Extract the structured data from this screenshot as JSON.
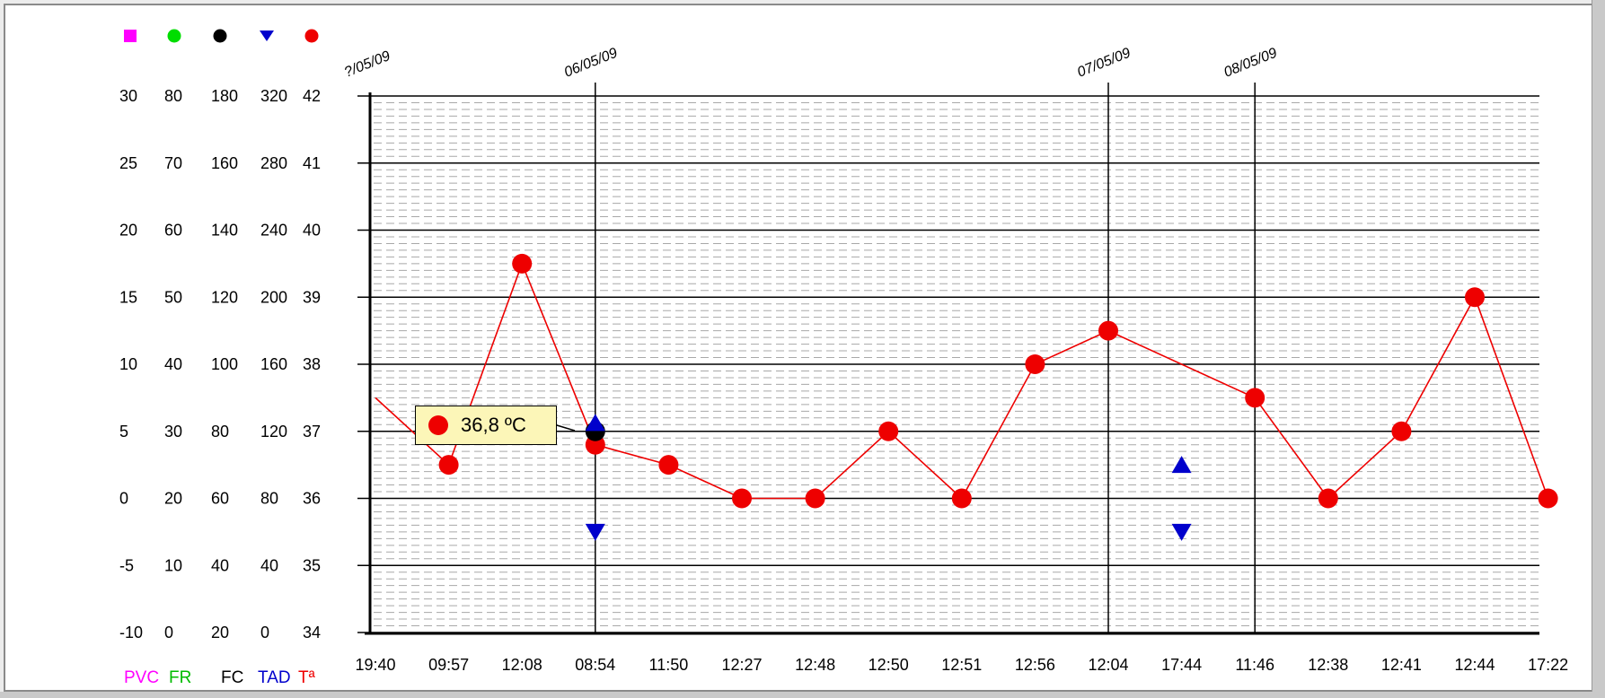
{
  "chart_data": {
    "type": "line",
    "legend_markers": [
      {
        "series": "PVC",
        "shape": "square",
        "color": "#ff00ff"
      },
      {
        "series": "FR",
        "shape": "circle",
        "color": "#00dd00"
      },
      {
        "series": "FC",
        "shape": "circle",
        "color": "#000000"
      },
      {
        "series": "TAD",
        "shape": "triangle-down",
        "color": "#0000cc"
      },
      {
        "series": "Tª",
        "shape": "circle",
        "color": "#ee0000"
      }
    ],
    "axes": [
      {
        "name": "PVC",
        "color": "#ff00ff",
        "ticks": [
          "30",
          "25",
          "20",
          "15",
          "10",
          "5",
          "0",
          "-5",
          "-10"
        ]
      },
      {
        "name": "FR",
        "color": "#00bb00",
        "ticks": [
          "80",
          "70",
          "60",
          "50",
          "40",
          "30",
          "20",
          "10",
          "0"
        ]
      },
      {
        "name": "FC",
        "color": "#000000",
        "ticks": [
          "180",
          "160",
          "140",
          "120",
          "100",
          "80",
          "60",
          "40",
          "20"
        ]
      },
      {
        "name": "TAD",
        "color": "#0000cc",
        "ticks": [
          "320",
          "280",
          "240",
          "200",
          "160",
          "120",
          "80",
          "40",
          "0"
        ]
      },
      {
        "name": "Tª",
        "color": "#ee0000",
        "ticks": [
          "42",
          "41",
          "40",
          "39",
          "38",
          "37",
          "36",
          "35",
          "34"
        ]
      }
    ],
    "temperature_ylim": [
      34,
      42
    ],
    "x_labels": [
      "19:40",
      "09:57",
      "12:08",
      "08:54",
      "11:50",
      "12:27",
      "12:48",
      "12:50",
      "12:51",
      "12:56",
      "12:04",
      "17:44",
      "11:46",
      "12:38",
      "12:41",
      "12:44",
      "17:22"
    ],
    "date_markers": [
      {
        "index": 0,
        "label": "?/05/09"
      },
      {
        "index": 3,
        "label": "06/05/09"
      },
      {
        "index": 10,
        "label": "07/05/09"
      },
      {
        "index": 12,
        "label": "08/05/09"
      }
    ],
    "series": [
      {
        "name": "Tª",
        "color": "#ee0000",
        "marker": "circle",
        "values": [
          37.5,
          36.5,
          39.5,
          36.8,
          36.5,
          36,
          36,
          37,
          36,
          38,
          38.5,
          null,
          37.5,
          36,
          37,
          39,
          36
        ]
      },
      {
        "name": "FC",
        "color": "#000000",
        "marker": "circle",
        "points": [
          {
            "index": 3,
            "value": 80
          }
        ]
      },
      {
        "name": "TAD",
        "color": "#0000cc",
        "points": [
          {
            "index": 3,
            "systolic": 125,
            "diastolic": 60
          },
          {
            "index": 11,
            "systolic": 100,
            "diastolic": 60
          }
        ]
      }
    ],
    "tooltip": {
      "text": "36,8 ºC",
      "color": "#ee0000"
    },
    "grid": true
  }
}
